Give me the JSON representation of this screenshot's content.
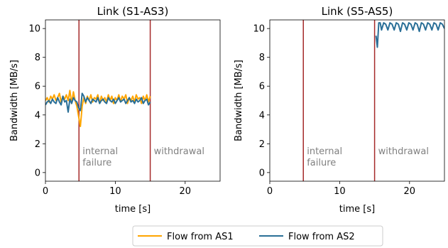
{
  "chart_data": [
    {
      "type": "line",
      "title": "Link (S1-AS3)",
      "xlabel": "time [s]",
      "ylabel": "Bandwidth [MB/s]",
      "xlim": [
        0,
        25
      ],
      "ylim": [
        -0.6,
        10.6
      ],
      "xticks": [
        "0",
        "10",
        "20"
      ],
      "yticks": [
        "0",
        "2",
        "4",
        "6",
        "8",
        "10"
      ],
      "grid": false,
      "events": [
        {
          "x": 4.8,
          "label": [
            "internal",
            "failure"
          ]
        },
        {
          "x": 15.0,
          "label": [
            "withdrawal"
          ]
        }
      ],
      "series": [
        {
          "name": "Flow from AS1",
          "color": "#FFA500",
          "x": [
            0,
            0.25,
            0.5,
            0.75,
            1,
            1.25,
            1.5,
            1.75,
            2,
            2.25,
            2.5,
            2.75,
            3,
            3.25,
            3.5,
            3.75,
            4,
            4.25,
            4.5,
            4.75,
            5,
            5.25,
            5.5,
            5.75,
            6,
            6.25,
            6.5,
            6.75,
            7,
            7.25,
            7.5,
            7.75,
            8,
            8.25,
            8.5,
            8.75,
            9,
            9.25,
            9.5,
            9.75,
            10,
            10.25,
            10.5,
            10.75,
            11,
            11.25,
            11.5,
            11.75,
            12,
            12.25,
            12.5,
            12.75,
            13,
            13.25,
            13.5,
            13.75,
            14,
            14.25,
            14.5,
            14.75,
            15
          ],
          "y": [
            5.0,
            5.2,
            4.9,
            5.3,
            5.1,
            5.4,
            5.0,
            5.2,
            5.5,
            4.9,
            5.3,
            5.1,
            5.4,
            5.0,
            5.7,
            4.8,
            5.6,
            5.0,
            4.6,
            3.9,
            3.2,
            4.6,
            5.2,
            4.8,
            5.3,
            5.0,
            5.4,
            4.9,
            5.2,
            5.1,
            5.4,
            4.8,
            5.3,
            5.0,
            5.2,
            4.9,
            5.4,
            5.0,
            5.3,
            4.8,
            5.2,
            5.0,
            5.4,
            4.9,
            5.3,
            5.1,
            5.4,
            4.8,
            5.2,
            5.0,
            5.3,
            4.9,
            5.4,
            5.1,
            5.2,
            4.8,
            5.3,
            5.0,
            5.4,
            4.9,
            5.3
          ]
        },
        {
          "name": "Flow from AS2",
          "color": "#2A6F97",
          "x": [
            0,
            0.25,
            0.5,
            0.75,
            1,
            1.25,
            1.5,
            1.75,
            2,
            2.25,
            2.5,
            2.75,
            3,
            3.25,
            3.5,
            3.75,
            4,
            4.25,
            4.5,
            4.75,
            5,
            5.25,
            5.5,
            5.75,
            6,
            6.25,
            6.5,
            6.75,
            7,
            7.25,
            7.5,
            7.75,
            8,
            8.25,
            8.5,
            8.75,
            9,
            9.25,
            9.5,
            9.75,
            10,
            10.25,
            10.5,
            10.75,
            11,
            11.25,
            11.5,
            11.75,
            12,
            12.25,
            12.5,
            12.75,
            13,
            13.25,
            13.5,
            13.75,
            14,
            14.25,
            14.5,
            14.75,
            15,
            15.25,
            15.5,
            15.75,
            16,
            16.25,
            16.5,
            16.75,
            17,
            17.25,
            17.5,
            17.75,
            18,
            18.25,
            18.5,
            18.75,
            19,
            19.25,
            19.5,
            19.75,
            20,
            20.25,
            20.5,
            20.75,
            21,
            21.25,
            21.5,
            21.75,
            22,
            22.25,
            22.5,
            22.75,
            23,
            23.25,
            23.5,
            23.75,
            24,
            24.25,
            24.5,
            24.75,
            25
          ],
          "y": [
            4.7,
            4.9,
            5.0,
            4.8,
            5.1,
            4.9,
            4.8,
            5.2,
            4.9,
            4.7,
            5.3,
            4.9,
            5.0,
            4.2,
            5.1,
            4.8,
            5.2,
            5.0,
            4.9,
            4.5,
            4.3,
            5.5,
            5.3,
            4.9,
            5.2,
            5.0,
            4.8,
            5.1,
            5.0,
            4.9,
            5.2,
            4.8,
            5.0,
            5.1,
            4.9,
            4.8,
            5.2,
            5.0,
            4.9,
            5.1,
            4.8,
            5.0,
            5.2,
            4.9,
            5.0,
            5.1,
            4.8,
            5.0,
            5.2,
            4.9,
            5.0,
            4.8,
            5.1,
            4.9,
            5.0,
            5.2,
            4.8,
            5.0,
            5.1,
            4.7,
            4.9,
            null,
            null,
            null,
            null,
            null,
            null,
            null,
            null,
            null,
            null,
            null,
            null,
            null,
            null,
            null,
            null,
            null,
            null,
            null,
            null,
            null,
            null,
            null,
            null,
            null,
            null,
            null,
            null,
            null,
            null,
            null,
            null,
            null,
            null,
            null,
            null,
            null,
            null,
            null,
            null
          ]
        }
      ]
    },
    {
      "type": "line",
      "title": "Link (S5-AS5)",
      "xlabel": "time [s]",
      "ylabel": "Bandwidth [MB/s]",
      "xlim": [
        0,
        25
      ],
      "ylim": [
        -0.6,
        10.6
      ],
      "xticks": [
        "0",
        "10",
        "20"
      ],
      "yticks": [
        "0",
        "2",
        "4",
        "6",
        "8",
        "10"
      ],
      "grid": false,
      "events": [
        {
          "x": 4.8,
          "label": [
            "internal",
            "failure"
          ]
        },
        {
          "x": 15.0,
          "label": [
            "withdrawal"
          ]
        }
      ],
      "series": [
        {
          "name": "Flow from AS2",
          "color": "#2A6F97",
          "x": [
            15.2,
            15.4,
            15.6,
            15.8,
            16.0,
            16.3,
            16.6,
            16.9,
            17.2,
            17.5,
            17.8,
            18.1,
            18.4,
            18.7,
            19.0,
            19.3,
            19.6,
            19.9,
            20.2,
            20.5,
            20.8,
            21.1,
            21.4,
            21.7,
            22.0,
            22.3,
            22.6,
            22.9,
            23.2,
            23.5,
            23.8,
            24.1,
            24.4,
            24.7,
            25.0
          ],
          "y": [
            9.5,
            8.7,
            10.4,
            10.4,
            9.9,
            10.4,
            10.3,
            9.9,
            10.4,
            10.3,
            9.9,
            10.4,
            10.3,
            9.8,
            10.4,
            10.3,
            9.9,
            10.4,
            10.3,
            9.9,
            10.4,
            10.3,
            9.8,
            10.4,
            10.3,
            9.9,
            10.4,
            10.3,
            9.9,
            10.4,
            10.3,
            9.9,
            10.4,
            10.3,
            10.0
          ]
        }
      ]
    }
  ],
  "legend": {
    "placement": "bottom-center",
    "entries": [
      {
        "label": "Flow from AS1",
        "color": "#FFA500"
      },
      {
        "label": "Flow from AS2",
        "color": "#2A6F97"
      }
    ]
  },
  "colors": {
    "event_line": "#A52A2A",
    "annotation_text": "#808080",
    "axis": "#000000"
  }
}
